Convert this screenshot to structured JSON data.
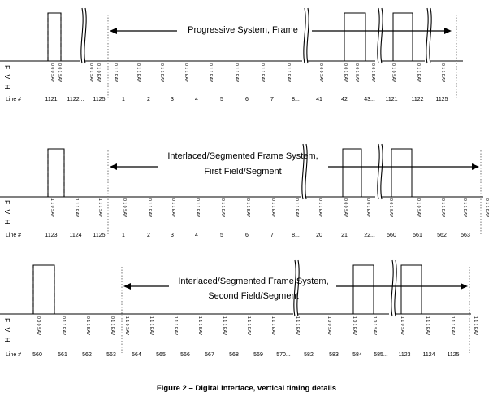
{
  "caption": "Figure 2 – Digital interface, vertical timing details",
  "line_label": "Line #",
  "fvh": "F V H",
  "panels": [
    {
      "title_lines": [
        "Progressive System, Frame"
      ],
      "line_numbers": [
        "1121",
        "1122...",
        "1125",
        "1",
        "2",
        "3",
        "4",
        "5",
        "6",
        "7",
        "8...",
        "41",
        "42",
        "43...",
        "1121",
        "1122",
        "1125"
      ],
      "code_labels": [
        "0 0 0 SAV",
        "0 0 1 SAV",
        "0 0 1 SAV",
        "0 1 0 EAV",
        "0 1 1 EAV",
        "0 1 1 EAV",
        "0 1 1 EAV",
        "0 1 1 EAV",
        "0 1 1 EAV",
        "0 1 1 EAV",
        "0 1 1 EAV",
        "0 1 1 EAV",
        "0 0 0 SAV",
        "0 0 1 EAV",
        "0 0 1 SAV",
        "0 0 1 EAV",
        "0 1 0 SAV",
        "0 1 1 EAV",
        "0 1 1 EAV"
      ]
    },
    {
      "title_lines": [
        "Interlaced/Segmented Frame System,",
        "First Field/Segment"
      ],
      "line_numbers": [
        "1123",
        "1124",
        "1125",
        "1",
        "2",
        "3",
        "4",
        "5",
        "6",
        "7",
        "8...",
        "20",
        "21",
        "22...",
        "560",
        "561",
        "562",
        "563"
      ],
      "code_labels": [
        "1 1 0 SAV",
        "1 1 1 EAV",
        "1 1 1 SAV",
        "0 1 0 SAV",
        "0 1 1 EAV",
        "0 1 1 EAV",
        "0 1 1 EAV",
        "0 1 1 EAV",
        "0 1 1 EAV",
        "0 1 1 EAV",
        "0 1 1 EAV",
        "0 1 1 EAV",
        "0 0 0 SAV",
        "0 0 1 EAV",
        "0 0 1 SAV",
        "0 1 0 SAV",
        "0 1 1 EAV",
        "0 1 1 EAV",
        "0 1 1 EAV"
      ]
    },
    {
      "title_lines": [
        "Interlaced/Segmented Frame System,",
        "Second Field/Segment"
      ],
      "line_numbers": [
        "560",
        "561",
        "562",
        "563",
        "564",
        "565",
        "566",
        "567",
        "568",
        "569",
        "570...",
        "582",
        "583",
        "584",
        "585...",
        "1123",
        "1124",
        "1125"
      ],
      "code_labels": [
        "0 0 0 SAV",
        "0 1 1 EAV",
        "0 1 1 EAV",
        "0 1 1 EAV",
        "1 1 0 SAV",
        "1 1 1 EAV",
        "1 1 1 EAV",
        "1 1 1 EAV",
        "1 1 1 EAV",
        "1 1 1 EAV",
        "1 1 1 EAV",
        "1 1 1 EAV",
        "1 0 0 SAV",
        "1 0 1 EAV",
        "1 0 1 SAV",
        "1 1 0 SAV",
        "1 1 1 EAV",
        "1 1 1 EAV",
        "1 1 1 EAV"
      ]
    }
  ]
}
